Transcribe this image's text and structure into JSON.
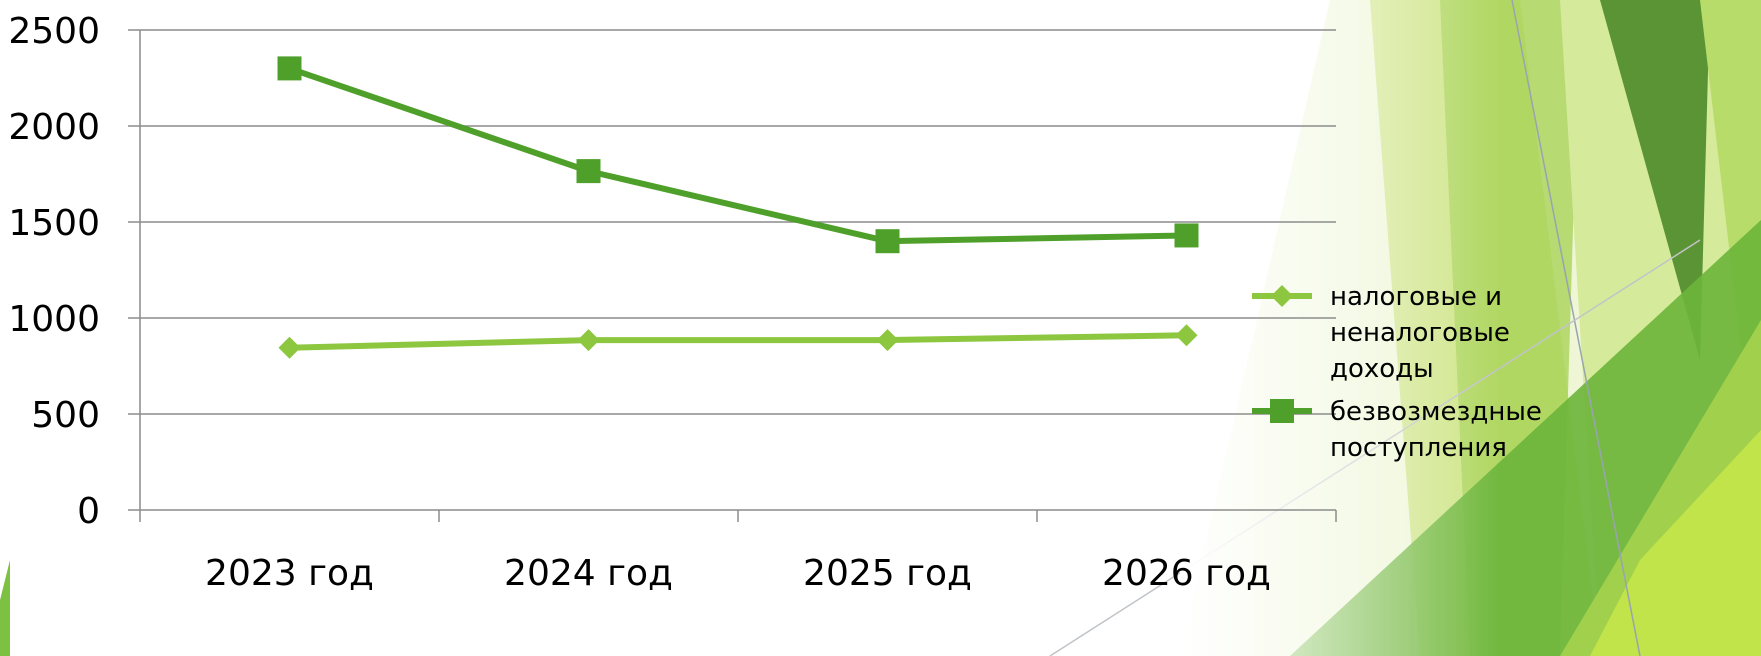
{
  "chart_data": {
    "type": "line",
    "categories": [
      "2023 год",
      "2024 год",
      "2025 год",
      "2026 год"
    ],
    "series": [
      {
        "name": "налоговые и неналоговые доходы",
        "name_lines": [
          "налоговые и",
          "неналоговые",
          "доходы"
        ],
        "values": [
          845,
          885,
          885,
          910
        ],
        "color": "#8dc63f",
        "marker": "diamond"
      },
      {
        "name": "безвозмездные поступления",
        "name_lines": [
          "безвозмездные",
          "поступления"
        ],
        "values": [
          2300,
          1765,
          1400,
          1430
        ],
        "color": "#4ea02a",
        "marker": "square"
      }
    ],
    "ylim": [
      0,
      2500
    ],
    "yticks": [
      0,
      500,
      1000,
      1500,
      2000,
      2500
    ],
    "ytick_labels": [
      "0",
      "500",
      "1000",
      "1500",
      "2000",
      "2500"
    ],
    "grid": true,
    "legend": "right",
    "title": "",
    "xlabel": "",
    "ylabel": ""
  }
}
